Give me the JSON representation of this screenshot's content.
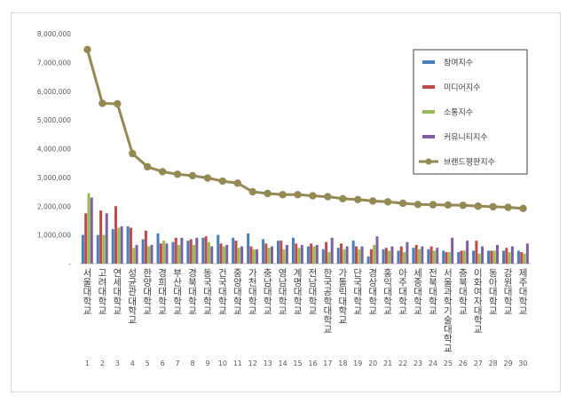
{
  "chart_data": {
    "type": "bar",
    "categories": [
      "서울대학교",
      "고려대학교",
      "연세대학교",
      "성균관대학교",
      "한양대학교",
      "경희대학교",
      "부산대학교",
      "경북대학교",
      "동국대학교",
      "건국대학교",
      "중앙대학교",
      "가천대학교",
      "충남대학교",
      "영남대학교",
      "계명대학교",
      "전남대학교",
      "한국공학대학교",
      "가톨릭대학교",
      "단국대학교",
      "경상대학교",
      "홍익대학교",
      "아주대학교",
      "세종대학교",
      "전북대학교",
      "서울과학기술대학교",
      "충북대학교",
      "이화여자대학교",
      "동아대학교",
      "강원대학교",
      "제주대학교"
    ],
    "ranks": [
      "1",
      "2",
      "3",
      "4",
      "5",
      "6",
      "7",
      "8",
      "9",
      "10",
      "11",
      "12",
      "13",
      "14",
      "15",
      "16",
      "17",
      "18",
      "19",
      "20",
      "21",
      "22",
      "23",
      "24",
      "25",
      "26",
      "27",
      "28",
      "29",
      "30"
    ],
    "y_ticks": [
      "-",
      "1,000,000",
      "2,000,000",
      "3,000,000",
      "4,000,000",
      "5,000,000",
      "6,000,000",
      "7,000,000",
      "8,000,000"
    ],
    "ylim": [
      0,
      8000000
    ],
    "series": [
      {
        "name": "참여지수",
        "kind": "bar",
        "color": "#4a7ebb",
        "values": [
          1000000,
          1000000,
          1200000,
          1300000,
          850000,
          1050000,
          750000,
          800000,
          900000,
          1000000,
          900000,
          1050000,
          850000,
          800000,
          900000,
          600000,
          500000,
          550000,
          800000,
          250000,
          500000,
          450000,
          550000,
          500000,
          450000,
          400000,
          450000,
          450000,
          450000,
          450000
        ]
      },
      {
        "name": "미디어지수",
        "kind": "bar",
        "color": "#be4b48",
        "values": [
          1750000,
          1850000,
          2000000,
          1250000,
          1150000,
          700000,
          900000,
          850000,
          950000,
          700000,
          800000,
          600000,
          700000,
          800000,
          700000,
          700000,
          750000,
          700000,
          600000,
          500000,
          550000,
          600000,
          650000,
          600000,
          400000,
          450000,
          800000,
          450000,
          550000,
          400000
        ]
      },
      {
        "name": "소통지수",
        "kind": "bar",
        "color": "#98b954",
        "values": [
          2450000,
          1000000,
          1250000,
          550000,
          600000,
          800000,
          650000,
          650000,
          750000,
          600000,
          550000,
          500000,
          550000,
          500000,
          550000,
          600000,
          400000,
          500000,
          500000,
          650000,
          450000,
          400000,
          500000,
          450000,
          400000,
          450000,
          350000,
          450000,
          400000,
          350000
        ]
      },
      {
        "name": "커뮤니티지수",
        "kind": "bar",
        "color": "#7d60a0",
        "values": [
          2300000,
          1750000,
          1300000,
          650000,
          650000,
          700000,
          900000,
          900000,
          600000,
          650000,
          600000,
          500000,
          600000,
          650000,
          650000,
          650000,
          900000,
          600000,
          600000,
          950000,
          600000,
          750000,
          600000,
          550000,
          900000,
          800000,
          600000,
          650000,
          600000,
          700000
        ]
      },
      {
        "name": "브랜드평판지수",
        "kind": "line",
        "color": "#938953",
        "values": [
          7450000,
          5580000,
          5560000,
          3830000,
          3370000,
          3200000,
          3110000,
          3060000,
          2980000,
          2870000,
          2800000,
          2500000,
          2440000,
          2400000,
          2400000,
          2360000,
          2330000,
          2260000,
          2230000,
          2180000,
          2150000,
          2100000,
          2060000,
          2050000,
          2040000,
          2030000,
          2000000,
          1980000,
          1960000,
          1920000
        ]
      }
    ],
    "legend": "right",
    "grid": false
  }
}
